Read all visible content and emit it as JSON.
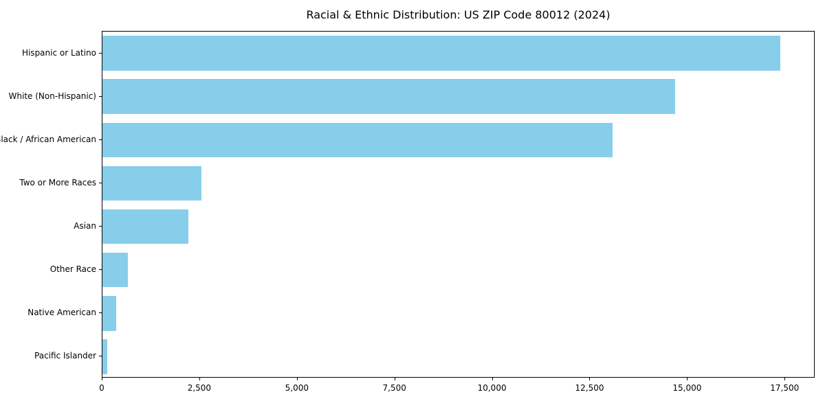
{
  "chart_data": {
    "type": "bar",
    "orientation": "horizontal",
    "title": "Racial & Ethnic Distribution: US ZIP Code 80012 (2024)",
    "categories": [
      "Hispanic or Latino",
      "White (Non-Hispanic)",
      "Black / African American",
      "Two or More Races",
      "Asian",
      "Other Race",
      "Native American",
      "Pacific Islander"
    ],
    "values": [
      17400,
      14700,
      13100,
      2550,
      2200,
      650,
      350,
      120
    ],
    "xlabel": "",
    "ylabel": "",
    "xlim": [
      0,
      18270
    ],
    "x_ticks": [
      0,
      2500,
      5000,
      7500,
      10000,
      12500,
      15000,
      17500
    ],
    "x_tick_labels": [
      "0",
      "2,500",
      "5,000",
      "7,500",
      "10,000",
      "12,500",
      "15,000",
      "17,500"
    ],
    "bar_color": "#87CEEB",
    "background_color": "#ffffff",
    "grid": false,
    "legend": "none"
  }
}
